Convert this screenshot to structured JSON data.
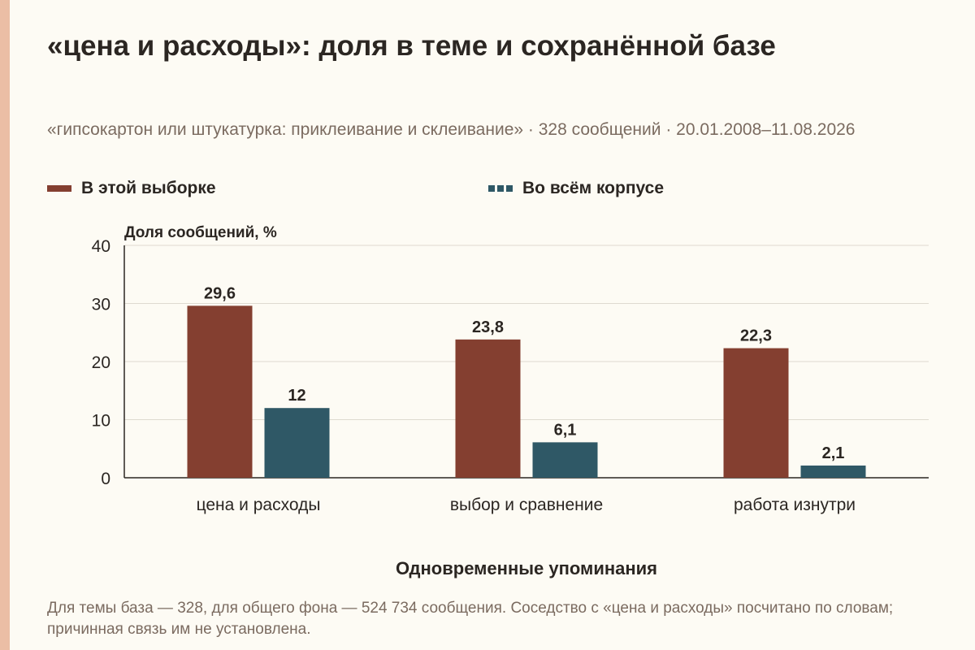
{
  "title": "«цена и расходы»: доля в теме и сохранённой базе",
  "subtitle": "«гипсокартон или штукатурка: приклеивание и склеивание» · 328 сообщений · 20.01.2008–11.08.2026",
  "legend": {
    "series_a": "В этой выборке",
    "series_b": "Во всём корпусе"
  },
  "footnote": "Для темы база — 328, для общего фона — 524 734 сообщения. Соседство с «цена и расходы» посчитано по словам; причинная связь им не установлена.",
  "colors": {
    "series_a": "#843f30",
    "series_b": "#2f5866",
    "grid": "#dedad0",
    "axis": "#2b2622",
    "text": "#2b2622"
  },
  "chart_data": {
    "type": "bar",
    "title": "«цена и расходы»: доля в теме и сохранённой базе",
    "ylabel": "Доля сообщений, %",
    "xlabel": "Одновременные упоминания",
    "ylim": [
      0,
      40
    ],
    "yticks": [
      "0",
      "10",
      "20",
      "30",
      "40"
    ],
    "grid": true,
    "legend_position": "top-left",
    "categories": [
      "цена и расходы",
      "выбор и сравнение",
      "работа изнутри"
    ],
    "series": [
      {
        "name": "В этой выборке",
        "values": [
          29.6,
          23.8,
          22.3
        ],
        "labels": [
          "29,6",
          "23,8",
          "22,3"
        ]
      },
      {
        "name": "Во всём корпусе",
        "values": [
          12,
          6.1,
          2.1
        ],
        "labels": [
          "12",
          "6,1",
          "2,1"
        ]
      }
    ]
  }
}
